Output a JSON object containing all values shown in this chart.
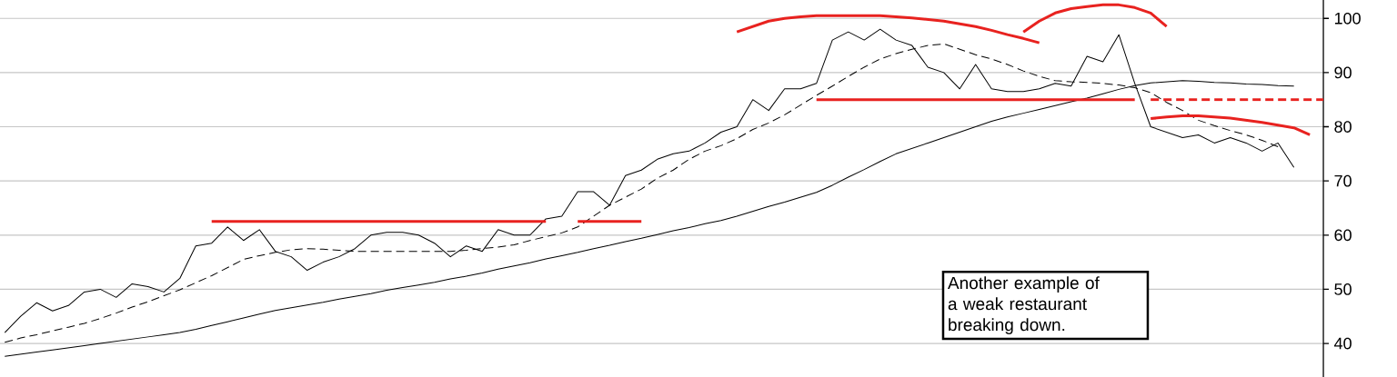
{
  "chart_data": {
    "type": "line",
    "grid": "y",
    "tick_labels": "y",
    "marker": "none",
    "ylim": [
      33.8,
      103.4
    ],
    "yticks": [
      40,
      50,
      60,
      70,
      80,
      90,
      100
    ],
    "annotations": [
      "Another example of a weak restaurant breaking down."
    ],
    "categories": [
      null,
      null,
      null,
      null,
      null,
      null,
      null,
      null,
      null,
      null,
      null,
      null,
      null,
      null,
      null,
      null,
      null,
      null,
      null,
      null,
      null,
      null,
      null,
      null,
      null,
      null,
      null,
      null,
      null,
      null,
      null,
      null,
      null,
      null,
      null,
      null,
      null,
      null,
      null,
      null,
      null,
      null,
      null,
      null,
      null,
      null,
      null,
      null,
      null,
      null,
      null,
      null,
      null,
      null,
      null,
      null,
      null,
      null,
      null,
      null,
      null,
      null,
      null,
      null,
      null,
      null,
      null,
      null,
      null,
      null,
      null,
      null,
      null,
      null,
      null,
      null,
      null,
      null,
      null,
      null,
      null,
      null,
      null,
      null
    ],
    "series": [
      {
        "color": "#000000",
        "line_style": "solid",
        "values": [
          42,
          45,
          47.5,
          46,
          47,
          49.5,
          50,
          48.5,
          51,
          50.5,
          49.5,
          52,
          58,
          58.5,
          61.5,
          59,
          61,
          57,
          56,
          53.5,
          55,
          56,
          57.5,
          60,
          60.5,
          60.5,
          60,
          58.5,
          56,
          58,
          57,
          61,
          60,
          60,
          63,
          63.5,
          68,
          68,
          65.5,
          71,
          72,
          74,
          75,
          75.5,
          77,
          79,
          80,
          85,
          83,
          87,
          87,
          88,
          96,
          97.5,
          96,
          98,
          96,
          95,
          91,
          90,
          87,
          91.5,
          87,
          86.5,
          86.5,
          87,
          88,
          87.5,
          93,
          92,
          97,
          88,
          80,
          79,
          78,
          78.5,
          77,
          78,
          77,
          75.5,
          77,
          72.5,
          null,
          null
        ]
      },
      {
        "color": "#000000",
        "line_style": "dashed",
        "values": [
          40.2,
          41,
          41.6,
          42.3,
          43,
          43.7,
          44.6,
          45.6,
          46.7,
          47.7,
          48.8,
          49.9,
          51.2,
          52.5,
          54,
          55.5,
          56.2,
          56.8,
          57.3,
          57.5,
          57.4,
          57.2,
          57,
          57,
          57,
          57,
          57,
          57,
          57,
          57.2,
          57.5,
          57.8,
          58.2,
          59,
          59.7,
          60.4,
          61.5,
          63.5,
          65.5,
          67,
          68.5,
          70.5,
          72,
          74,
          75.5,
          76.5,
          77.8,
          79.5,
          80.7,
          82.2,
          84,
          85.8,
          87.5,
          89.3,
          91,
          92.5,
          93.5,
          94.3,
          95,
          95.3,
          94.3,
          93.3,
          92.5,
          91.5,
          90.3,
          89.3,
          88.5,
          88.3,
          88.2,
          88,
          87.7,
          87.2,
          86.3,
          84.5,
          83,
          81.2,
          80.2,
          79.3,
          78.5,
          77.5,
          76.3,
          null,
          null,
          null
        ]
      },
      {
        "color": "#000000",
        "line_style": "solid",
        "values": [
          37.6,
          38,
          38.4,
          38.8,
          39.2,
          39.6,
          40,
          40.4,
          40.8,
          41.2,
          41.6,
          42,
          42.6,
          43.3,
          44,
          44.7,
          45.4,
          46.1,
          46.6,
          47.1,
          47.6,
          48.2,
          48.7,
          49.2,
          49.8,
          50.3,
          50.8,
          51.3,
          51.9,
          52.4,
          53,
          53.7,
          54.3,
          54.9,
          55.6,
          56.2,
          56.8,
          57.5,
          58.1,
          58.8,
          59.4,
          60.1,
          60.8,
          61.4,
          62.1,
          62.7,
          63.5,
          64.4,
          65.3,
          66.1,
          67,
          67.9,
          69.2,
          70.7,
          72.1,
          73.6,
          75,
          76,
          77,
          78,
          79,
          80,
          81,
          81.8,
          82.5,
          83.2,
          83.9,
          84.6,
          85.3,
          86.1,
          86.9,
          87.6,
          88.1,
          88.3,
          88.5,
          88.4,
          88.2,
          88.1,
          87.9,
          87.8,
          87.6,
          87.5,
          null,
          null
        ]
      },
      {
        "color": "#e8221f",
        "line_style": "solid",
        "values": [
          null,
          null,
          null,
          null,
          null,
          null,
          null,
          null,
          null,
          null,
          null,
          null,
          null,
          62.5,
          62.5,
          62.5,
          62.5,
          62.5,
          62.5,
          62.5,
          62.5,
          62.5,
          62.5,
          62.5,
          62.5,
          62.5,
          62.5,
          62.5,
          62.5,
          62.5,
          62.5,
          62.5,
          62.5,
          62.5,
          62.5,
          null,
          null,
          null,
          null,
          null,
          null,
          null,
          null,
          null,
          null,
          null,
          null,
          null,
          null,
          null,
          null,
          null,
          null,
          null,
          null,
          null,
          null,
          null,
          null,
          null,
          null,
          null,
          null,
          null,
          null,
          null,
          null,
          null,
          null,
          null,
          null,
          null,
          null,
          null,
          null,
          null,
          null,
          null,
          null,
          null,
          null,
          null,
          null,
          null
        ]
      },
      {
        "color": "#e8221f",
        "line_style": "solid",
        "values": [
          null,
          null,
          null,
          null,
          null,
          null,
          null,
          null,
          null,
          null,
          null,
          null,
          null,
          null,
          null,
          null,
          null,
          null,
          null,
          null,
          null,
          null,
          null,
          null,
          null,
          null,
          null,
          null,
          null,
          null,
          null,
          null,
          null,
          null,
          null,
          null,
          62.5,
          62.5,
          62.5,
          62.5,
          62.5,
          null,
          null,
          null,
          null,
          null,
          null,
          null,
          null,
          null,
          null,
          null,
          null,
          null,
          null,
          null,
          null,
          null,
          null,
          null,
          null,
          null,
          null,
          null,
          null,
          null,
          null,
          null,
          null,
          null,
          null,
          null,
          null,
          null,
          null,
          null,
          null,
          null,
          null,
          null,
          null,
          null,
          null,
          null
        ]
      },
      {
        "color": "#e8221f",
        "line_style": "solid",
        "values": [
          null,
          null,
          null,
          null,
          null,
          null,
          null,
          null,
          null,
          null,
          null,
          null,
          null,
          null,
          null,
          null,
          null,
          null,
          null,
          null,
          null,
          null,
          null,
          null,
          null,
          null,
          null,
          null,
          null,
          null,
          null,
          null,
          null,
          null,
          null,
          null,
          null,
          null,
          null,
          null,
          null,
          null,
          null,
          null,
          null,
          null,
          null,
          null,
          null,
          null,
          null,
          85,
          85,
          85,
          85,
          85,
          85,
          85,
          85,
          85,
          85,
          85,
          85,
          85,
          85,
          85,
          85,
          85,
          85,
          85,
          85,
          85,
          null,
          null,
          null,
          null,
          null,
          null,
          null,
          null,
          null,
          null,
          null,
          null
        ]
      },
      {
        "color": "#e8221f",
        "line_style": "dashed",
        "values": [
          null,
          null,
          null,
          null,
          null,
          null,
          null,
          null,
          null,
          null,
          null,
          null,
          null,
          null,
          null,
          null,
          null,
          null,
          null,
          null,
          null,
          null,
          null,
          null,
          null,
          null,
          null,
          null,
          null,
          null,
          null,
          null,
          null,
          null,
          null,
          null,
          null,
          null,
          null,
          null,
          null,
          null,
          null,
          null,
          null,
          null,
          null,
          null,
          null,
          null,
          null,
          null,
          null,
          null,
          null,
          null,
          null,
          null,
          null,
          null,
          null,
          null,
          null,
          null,
          null,
          null,
          null,
          null,
          null,
          null,
          null,
          null,
          85,
          85,
          85,
          85,
          85,
          85,
          85,
          85,
          85,
          85,
          85,
          85
        ]
      },
      {
        "color": "#e8221f",
        "line_style": "solid",
        "values": [
          null,
          null,
          null,
          null,
          null,
          null,
          null,
          null,
          null,
          null,
          null,
          null,
          null,
          null,
          null,
          null,
          null,
          null,
          null,
          null,
          null,
          null,
          null,
          null,
          null,
          null,
          null,
          null,
          null,
          null,
          null,
          null,
          null,
          null,
          null,
          null,
          null,
          null,
          null,
          null,
          null,
          null,
          null,
          null,
          null,
          null,
          97.5,
          98.5,
          99.5,
          100,
          100.3,
          100.5,
          100.5,
          100.5,
          100.5,
          100.5,
          100.3,
          100.1,
          99.8,
          99.5,
          99,
          98.5,
          97.8,
          97,
          96.3,
          95.5,
          null,
          null,
          null,
          null,
          null,
          null,
          null,
          null,
          null,
          null,
          null,
          null,
          null,
          null,
          null,
          null,
          null,
          null
        ]
      },
      {
        "color": "#e8221f",
        "line_style": "solid",
        "values": [
          null,
          null,
          null,
          null,
          null,
          null,
          null,
          null,
          null,
          null,
          null,
          null,
          null,
          null,
          null,
          null,
          null,
          null,
          null,
          null,
          null,
          null,
          null,
          null,
          null,
          null,
          null,
          null,
          null,
          null,
          null,
          null,
          null,
          null,
          null,
          null,
          null,
          null,
          null,
          null,
          null,
          null,
          null,
          null,
          null,
          null,
          null,
          null,
          null,
          null,
          null,
          null,
          null,
          null,
          null,
          null,
          null,
          null,
          null,
          null,
          null,
          null,
          null,
          null,
          97.5,
          99.5,
          101,
          101.8,
          102.2,
          102.5,
          102.5,
          102,
          101,
          98.5,
          null,
          null,
          null,
          null,
          null,
          null,
          null,
          null,
          null,
          null
        ]
      },
      {
        "color": "#e8221f",
        "line_style": "solid",
        "values": [
          null,
          null,
          null,
          null,
          null,
          null,
          null,
          null,
          null,
          null,
          null,
          null,
          null,
          null,
          null,
          null,
          null,
          null,
          null,
          null,
          null,
          null,
          null,
          null,
          null,
          null,
          null,
          null,
          null,
          null,
          null,
          null,
          null,
          null,
          null,
          null,
          null,
          null,
          null,
          null,
          null,
          null,
          null,
          null,
          null,
          null,
          null,
          null,
          null,
          null,
          null,
          null,
          null,
          null,
          null,
          null,
          null,
          null,
          null,
          null,
          null,
          null,
          null,
          null,
          null,
          null,
          null,
          null,
          null,
          null,
          null,
          null,
          81.5,
          81.8,
          82,
          82,
          81.8,
          81.6,
          81.2,
          80.8,
          80.3,
          79.8,
          78.5,
          null
        ]
      }
    ]
  }
}
